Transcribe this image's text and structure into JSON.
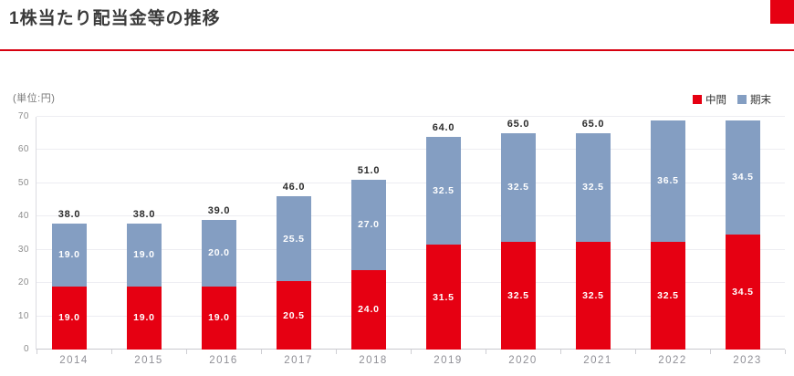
{
  "header": {
    "title": "1株当たり配当金等の推移"
  },
  "chart": {
    "unit_label": "(単位:円)",
    "legend": [
      {
        "label": "中間",
        "color": "#e60012"
      },
      {
        "label": "期末",
        "color": "#849ec2"
      }
    ]
  },
  "chart_data": {
    "type": "bar",
    "stacked": true,
    "title": "1株当たり配当金等の推移",
    "unit_label": "(単位:円)",
    "categories": [
      "2014",
      "2015",
      "2016",
      "2017",
      "2018",
      "2019",
      "2020",
      "2021",
      "2022",
      "2023"
    ],
    "series": [
      {
        "name": "中間",
        "color": "#e60012",
        "values": [
          19.0,
          19.0,
          19.0,
          20.5,
          24.0,
          31.5,
          32.5,
          32.5,
          32.5,
          34.5
        ]
      },
      {
        "name": "期末",
        "color": "#849ec2",
        "values": [
          19.0,
          19.0,
          20.0,
          25.5,
          27.0,
          32.5,
          32.5,
          32.5,
          36.5,
          34.5
        ]
      }
    ],
    "totals": [
      38.0,
      38.0,
      39.0,
      46.0,
      51.0,
      64.0,
      65.0,
      65.0,
      69.0,
      69.0
    ],
    "total_labels_shown": [
      true,
      true,
      true,
      true,
      true,
      true,
      true,
      true,
      false,
      false
    ],
    "xlabel": "",
    "ylabel": "",
    "ylim": [
      0,
      70
    ],
    "yticks": [
      0,
      10,
      20,
      30,
      40,
      50,
      60,
      70
    ],
    "grid": true,
    "legend_position": "top-right"
  },
  "colors": {
    "accent_red": "#e60012",
    "underline_red": "#d7000f",
    "bar_red": "#e60012",
    "bar_blue": "#849ec2",
    "grid": "#ededf2",
    "axis": "#c9c9ce",
    "axis_text": "#8c8c8c",
    "total_label_text": "#2b2b2b"
  }
}
